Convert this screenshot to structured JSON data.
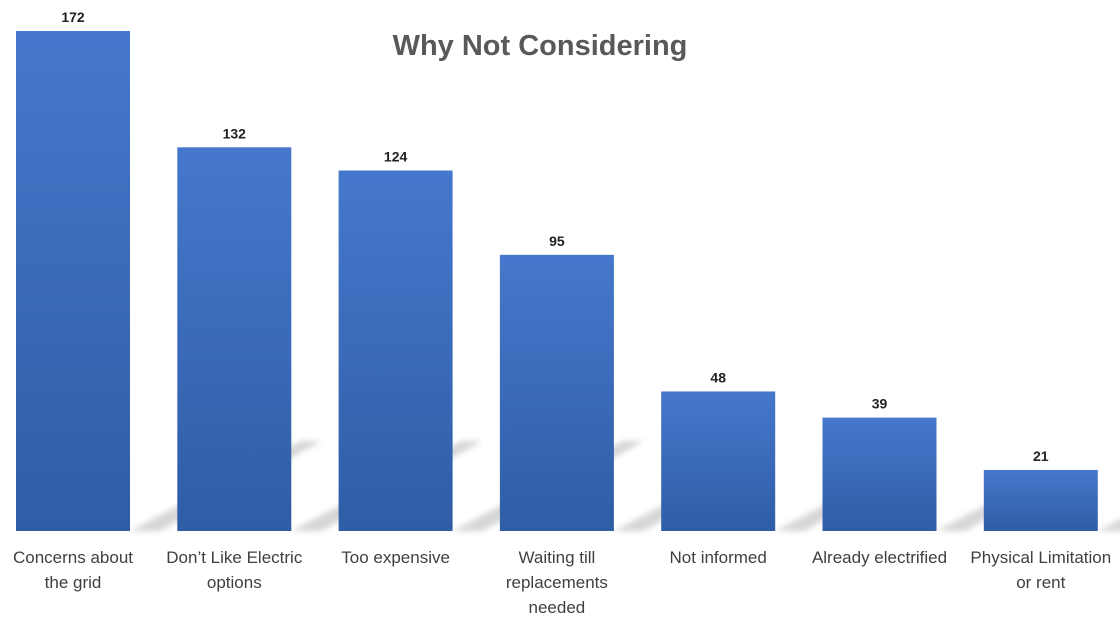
{
  "chart_data": {
    "type": "bar",
    "title": "Why Not Considering",
    "xlabel": "",
    "ylabel": "",
    "categories": [
      "Concerns about the grid",
      "Don’t Like Electric options",
      "Too expensive",
      "Waiting till replacements needed",
      "Not informed",
      "Already electrified",
      "Physical Limitation or rent"
    ],
    "values": [
      172,
      132,
      124,
      95,
      48,
      39,
      21
    ],
    "ylim": [
      0,
      172
    ],
    "grid": false,
    "data_labels": true,
    "bar_color_top": "#4578cc",
    "bar_color_bottom": "#2f5da6",
    "shadow_color": "#d6d6d6"
  }
}
